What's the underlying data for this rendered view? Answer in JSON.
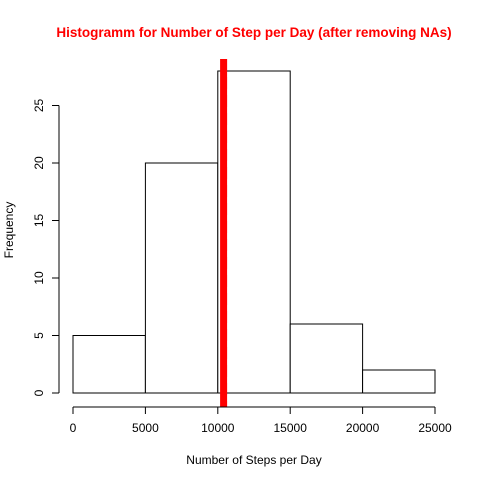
{
  "chart_data": {
    "type": "bar",
    "title": "Histogramm for Number of Step per Day (after removing NAs)",
    "xlabel": "Number of Steps per Day",
    "ylabel": "Frequency",
    "bins": [
      {
        "from": 0,
        "to": 5000,
        "count": 5
      },
      {
        "from": 5000,
        "to": 10000,
        "count": 20
      },
      {
        "from": 10000,
        "to": 15000,
        "count": 28
      },
      {
        "from": 15000,
        "to": 20000,
        "count": 6
      },
      {
        "from": 20000,
        "to": 25000,
        "count": 2
      }
    ],
    "xlim": [
      0,
      25000
    ],
    "ylim": [
      0,
      28
    ],
    "x_ticks": [
      "0",
      "5000",
      "10000",
      "15000",
      "20000",
      "25000"
    ],
    "y_ticks": [
      "0",
      "5",
      "10",
      "15",
      "20",
      "25"
    ],
    "reference_lines": [
      {
        "x": 10400,
        "color": "#ff0000",
        "style": "solid"
      },
      {
        "x": 10500,
        "color": "#ff0000",
        "style": "dashed"
      }
    ],
    "colors": {
      "title": "#ff0000",
      "bars_fill": "#ffffff",
      "bars_stroke": "#000000"
    },
    "grid": false,
    "legend": "none"
  }
}
